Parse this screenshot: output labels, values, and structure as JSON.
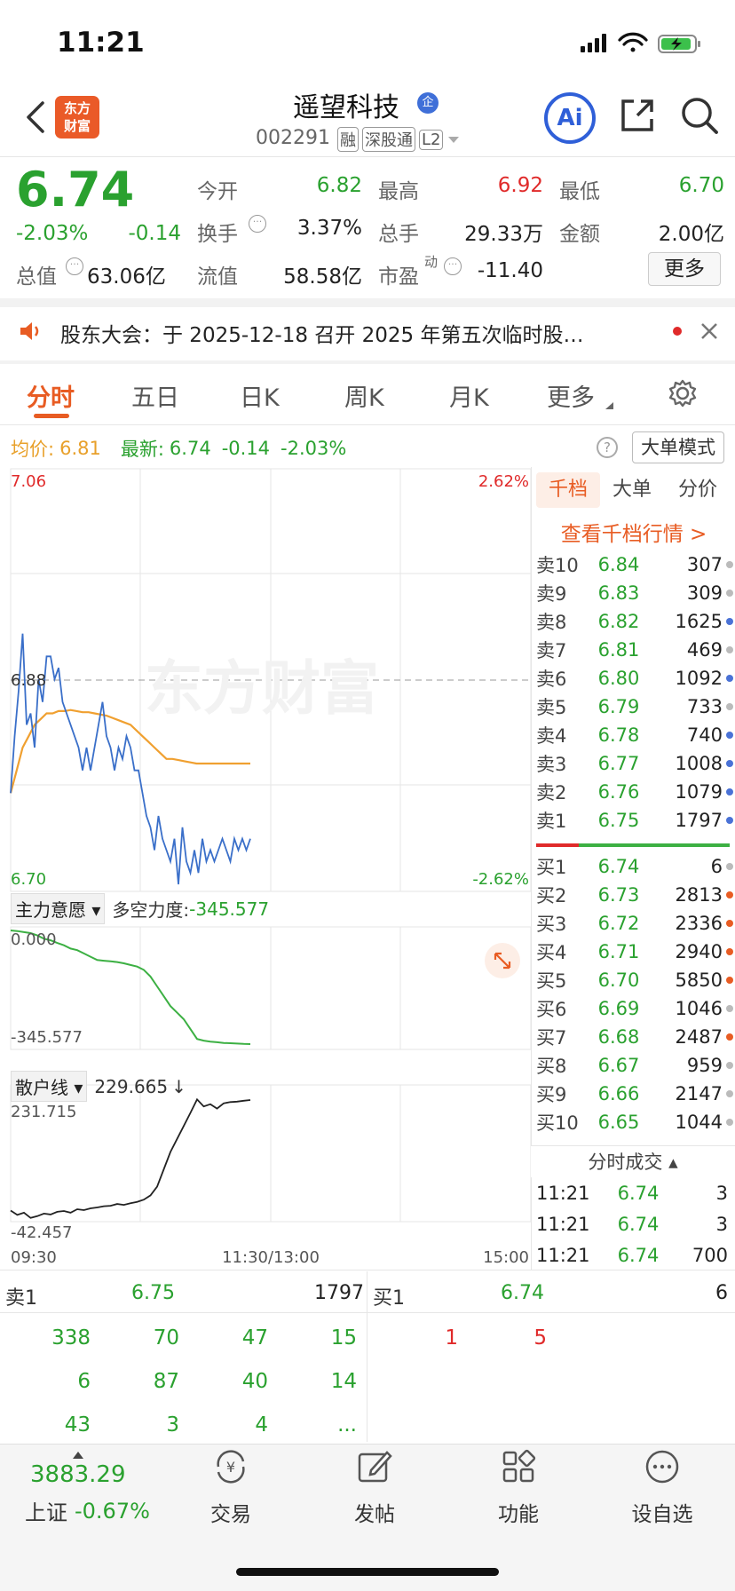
{
  "status_bar": {
    "time": "11:21"
  },
  "header": {
    "back_label": "<",
    "logo_text": "东方\n财富",
    "stock_name": "遥望科技",
    "badge": "企",
    "stock_code": "002291",
    "tags": [
      "融",
      "深股通",
      "L2"
    ]
  },
  "quote": {
    "price": "6.74",
    "change_pct": "-2.03%",
    "change_abs": "-0.14",
    "fields": [
      {
        "label": "今开",
        "value": "6.82"
      },
      {
        "label": "最高",
        "value": "6.92"
      },
      {
        "label": "最低",
        "value": "6.70"
      },
      {
        "label": "换手",
        "value": "3.37%"
      },
      {
        "label": "总手",
        "value": "29.33万"
      },
      {
        "label": "金额",
        "value": "2.00亿"
      },
      {
        "label": "总值",
        "value": "63.06亿"
      },
      {
        "label": "流值",
        "value": "58.58亿"
      },
      {
        "label": "市盈",
        "label_sup": "动",
        "value": "-11.40"
      }
    ],
    "more_button": "更多"
  },
  "notice": {
    "text": "股东大会：于 2025-12-18 召开 2025 年第五次临时股…"
  },
  "tabs": [
    "分时",
    "五日",
    "日K",
    "周K",
    "月K",
    "更多"
  ],
  "chart_header": {
    "avg_label": "均价:",
    "avg_value": "6.81",
    "last_label": "最新:",
    "last_value": "6.74",
    "last_change": "-0.14",
    "last_pct": "-2.03%",
    "help": "?",
    "mode_button": "大单模式"
  },
  "chart_data": [
    {
      "type": "line",
      "y_ticks_left": [
        "7.06",
        "6.88",
        "6.70"
      ],
      "y_ticks_right": [
        "2.62%",
        "-2.62%"
      ],
      "x_ticks": [
        "09:30",
        "11:30/13:00",
        "15:00"
      ],
      "ylim": [
        6.7,
        7.06
      ],
      "watermark": "东方财富",
      "series": [
        {
          "values": [
            6.78,
            6.83,
            6.87,
            6.92,
            6.84,
            6.85,
            6.82,
            6.88,
            6.86,
            6.9,
            6.9,
            6.88,
            6.89,
            6.86,
            6.85,
            6.84,
            6.83,
            6.82,
            6.8,
            6.82,
            6.8,
            6.82,
            6.84,
            6.86,
            6.83,
            6.82,
            6.8,
            6.82,
            6.81,
            6.83,
            6.82,
            6.8,
            6.8,
            6.78,
            6.76,
            6.75,
            6.73,
            6.76,
            6.74,
            6.73,
            6.72,
            6.74,
            6.7,
            6.75,
            6.72,
            6.71,
            6.73,
            6.71,
            6.74,
            6.72,
            6.73,
            6.72,
            6.73,
            6.74,
            6.73,
            6.72,
            6.74,
            6.73,
            6.74,
            6.73,
            6.74
          ]
        },
        {
          "values": [
            6.78,
            6.8,
            6.82,
            6.83,
            6.84,
            6.845,
            6.85,
            6.85,
            6.852,
            6.852,
            6.853,
            6.852,
            6.851,
            6.851,
            6.85,
            6.849,
            6.848,
            6.846,
            6.844,
            6.842,
            6.84,
            6.835,
            6.83,
            6.825,
            6.82,
            6.815,
            6.81,
            6.81,
            6.809,
            6.808,
            6.807,
            6.806,
            6.806,
            6.806,
            6.806,
            6.806,
            6.806,
            6.806,
            6.806,
            6.806,
            6.806
          ]
        }
      ]
    },
    {
      "type": "line",
      "title": "主力意愿",
      "indicator_label": "多空力度:",
      "indicator_value": "-345.577",
      "y_ticks": [
        "0.000",
        "-345.577"
      ],
      "ylim": [
        -345.577,
        0
      ],
      "series": [
        {
          "values": [
            0,
            -2,
            -5,
            -8,
            -15,
            -25,
            -30,
            -38,
            -45,
            -55,
            -60,
            -70,
            -80,
            -90,
            -92,
            -94,
            -96,
            -100,
            -105,
            -110,
            -120,
            -140,
            -170,
            -200,
            -230,
            -250,
            -270,
            -300,
            -330,
            -335,
            -338,
            -340,
            -342,
            -343,
            -344,
            -345,
            -345.577
          ]
        }
      ]
    },
    {
      "type": "line",
      "title": "散户线",
      "indicator_value": "229.665",
      "indicator_arrow": "↓",
      "y_ticks": [
        "231.715",
        "-42.457"
      ],
      "ylim": [
        -42.457,
        231.715
      ],
      "series": [
        {
          "values": [
            -25,
            -35,
            -30,
            -42,
            -38,
            -32,
            -34,
            -28,
            -26,
            -30,
            -22,
            -24,
            -20,
            -18,
            -15,
            -14,
            -10,
            -12,
            -8,
            -5,
            0,
            10,
            30,
            70,
            110,
            140,
            170,
            200,
            231,
            215,
            220,
            210,
            222,
            225,
            226,
            228,
            229.665
          ]
        }
      ]
    }
  ],
  "order_book": {
    "tabs": [
      "千档",
      "大单",
      "分价"
    ],
    "link": "查看千档行情 >",
    "asks": [
      {
        "label": "卖10",
        "price": "6.84",
        "volume": "307",
        "dot": "#bbbbbb"
      },
      {
        "label": "卖9",
        "price": "6.83",
        "volume": "309",
        "dot": "#bbbbbb"
      },
      {
        "label": "卖8",
        "price": "6.82",
        "volume": "1625",
        "dot": "#4a72d6"
      },
      {
        "label": "卖7",
        "price": "6.81",
        "volume": "469",
        "dot": "#bbbbbb"
      },
      {
        "label": "卖6",
        "price": "6.80",
        "volume": "1092",
        "dot": "#4a72d6"
      },
      {
        "label": "卖5",
        "price": "6.79",
        "volume": "733",
        "dot": "#bbbbbb"
      },
      {
        "label": "卖4",
        "price": "6.78",
        "volume": "740",
        "dot": "#4a72d6"
      },
      {
        "label": "卖3",
        "price": "6.77",
        "volume": "1008",
        "dot": "#4a72d6"
      },
      {
        "label": "卖2",
        "price": "6.76",
        "volume": "1079",
        "dot": "#4a72d6"
      },
      {
        "label": "卖1",
        "price": "6.75",
        "volume": "1797",
        "dot": "#4a72d6"
      }
    ],
    "bids": [
      {
        "label": "买1",
        "price": "6.74",
        "volume": "6",
        "dot": "#bbbbbb"
      },
      {
        "label": "买2",
        "price": "6.73",
        "volume": "2813",
        "dot": "#e85c23"
      },
      {
        "label": "买3",
        "price": "6.72",
        "volume": "2336",
        "dot": "#e85c23"
      },
      {
        "label": "买4",
        "price": "6.71",
        "volume": "2940",
        "dot": "#e85c23"
      },
      {
        "label": "买5",
        "price": "6.70",
        "volume": "5850",
        "dot": "#e85c23"
      },
      {
        "label": "买6",
        "price": "6.69",
        "volume": "1046",
        "dot": "#bbbbbb"
      },
      {
        "label": "买7",
        "price": "6.68",
        "volume": "2487",
        "dot": "#e85c23"
      },
      {
        "label": "买8",
        "price": "6.67",
        "volume": "959",
        "dot": "#bbbbbb"
      },
      {
        "label": "买9",
        "price": "6.66",
        "volume": "2147",
        "dot": "#bbbbbb"
      },
      {
        "label": "买10",
        "price": "6.65",
        "volume": "1044",
        "dot": "#bbbbbb"
      }
    ],
    "trades_title": "分时成交",
    "trades": [
      {
        "time": "11:21",
        "price": "6.74",
        "volume": "3"
      },
      {
        "time": "11:21",
        "price": "6.74",
        "volume": "3"
      },
      {
        "time": "11:21",
        "price": "6.74",
        "volume": "700"
      }
    ]
  },
  "queue": {
    "sell_label": "卖1",
    "sell_price": "6.75",
    "sell_volume": "1797",
    "buy_label": "买1",
    "buy_price": "6.74",
    "buy_volume": "6",
    "sell_orders": [
      "338",
      "70",
      "47",
      "15",
      "6",
      "87",
      "40",
      "14",
      "43",
      "3",
      "4",
      "..."
    ],
    "buy_orders": [
      "1",
      "5"
    ]
  },
  "bottom_nav": {
    "index_value": "3883.29",
    "index_name": "上证",
    "index_pct": "-0.67%",
    "items": [
      "交易",
      "发帖",
      "功能",
      "设自选"
    ]
  }
}
